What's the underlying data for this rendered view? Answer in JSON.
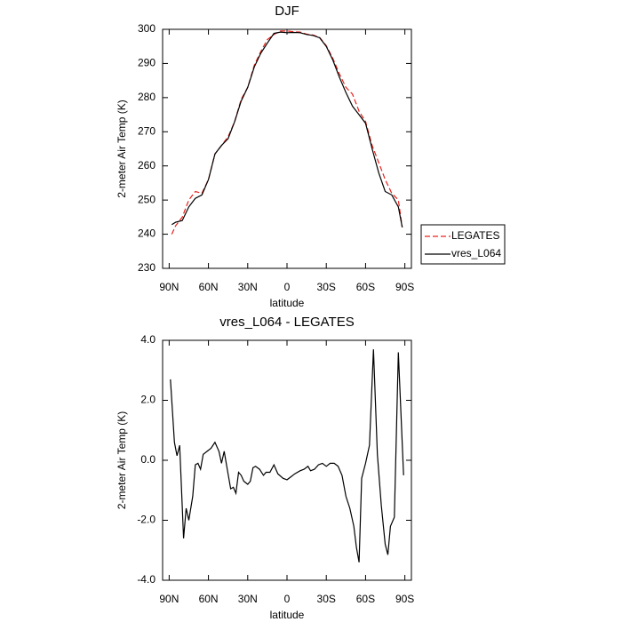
{
  "chart_data": [
    {
      "type": "line",
      "title": "DJF",
      "xlabel": "latitude",
      "ylabel": "2-meter Air Temp (K)",
      "xlim": [
        95,
        -95
      ],
      "xticks": [
        {
          "value": 90,
          "label": "90N"
        },
        {
          "value": 60,
          "label": "60N"
        },
        {
          "value": 30,
          "label": "30N"
        },
        0,
        {
          "value": -30,
          "label": "30S"
        },
        {
          "value": -60,
          "label": "60S"
        },
        {
          "value": -90,
          "label": "90S"
        }
      ],
      "ylim": [
        230,
        300
      ],
      "yticks": [
        230,
        240,
        250,
        260,
        270,
        280,
        290,
        300
      ],
      "legend": "right",
      "x": [
        88,
        85,
        80,
        75,
        70,
        65,
        60,
        55,
        50,
        45,
        40,
        35,
        30,
        25,
        20,
        15,
        10,
        5,
        0,
        -5,
        -10,
        -15,
        -20,
        -25,
        -30,
        -35,
        -40,
        -45,
        -50,
        -55,
        -60,
        -65,
        -70,
        -75,
        -80,
        -85,
        -88
      ],
      "series": [
        {
          "name": "LEGATES",
          "color": "#e8211b",
          "dash": true,
          "values": [
            240,
            242.5,
            245,
            250,
            252.5,
            252,
            256,
            263.5,
            266,
            268.5,
            273,
            279.5,
            283,
            289.5,
            293.5,
            297,
            298.5,
            299.5,
            299.5,
            299.3,
            299.2,
            298.6,
            298.3,
            297.6,
            295.2,
            291.5,
            287,
            283,
            281,
            276,
            273,
            266,
            261,
            256,
            252,
            250,
            242
          ]
        },
        {
          "name": "vres_L064",
          "color": "#000000",
          "dash": false,
          "values": [
            242.8,
            243.5,
            244,
            248,
            250.5,
            251.5,
            256,
            263.5,
            266,
            268,
            273,
            279,
            283,
            289,
            293,
            296,
            298.8,
            299.2,
            299,
            299.1,
            299,
            298.5,
            298.2,
            297.5,
            295,
            291,
            286,
            281.5,
            277.5,
            275,
            272.5,
            265,
            258,
            252.5,
            251.5,
            248,
            242
          ]
        }
      ]
    },
    {
      "type": "line",
      "title": "vres_L064 - LEGATES",
      "xlabel": "latitude",
      "ylabel": "2-meter Air Temp (K)",
      "xlim": [
        95,
        -95
      ],
      "xticks": [
        {
          "value": 90,
          "label": "90N"
        },
        {
          "value": 60,
          "label": "60N"
        },
        {
          "value": 30,
          "label": "30N"
        },
        0,
        {
          "value": -30,
          "label": "30S"
        },
        {
          "value": -60,
          "label": "60S"
        },
        {
          "value": -90,
          "label": "90S"
        }
      ],
      "ylim": [
        -4,
        4
      ],
      "yticks": [
        {
          "value": -4,
          "label": "-4.0"
        },
        {
          "value": -2,
          "label": "-2.0"
        },
        {
          "value": 0,
          "label": "0.0"
        },
        {
          "value": 2,
          "label": "2.0"
        },
        {
          "value": 4,
          "label": "4.0"
        }
      ],
      "x": [
        89,
        86,
        84,
        82,
        79,
        77,
        75,
        72,
        70,
        68,
        66,
        64,
        61,
        58,
        55,
        52,
        50,
        48,
        46,
        43,
        41,
        39,
        37,
        35,
        33,
        30,
        28,
        26,
        24,
        21,
        18,
        16,
        13,
        10,
        7,
        3,
        0,
        -3,
        -6,
        -10,
        -13,
        -16,
        -18,
        -21,
        -24,
        -27,
        -30,
        -33,
        -36,
        -39,
        -42,
        -45,
        -48,
        -51,
        -53,
        -55,
        -57,
        -60,
        -63,
        -66,
        -69,
        -72,
        -75,
        -77,
        -79,
        -82,
        -85,
        -89
      ],
      "series": [
        {
          "color": "#000000",
          "dash": false,
          "values": [
            2.7,
            0.6,
            0.15,
            0.5,
            -2.6,
            -1.6,
            -2.0,
            -1.2,
            -0.15,
            -0.1,
            -0.3,
            0.2,
            0.3,
            0.4,
            0.6,
            0.3,
            -0.1,
            0.3,
            -0.2,
            -0.95,
            -0.9,
            -1.1,
            -0.4,
            -0.5,
            -0.7,
            -0.8,
            -0.7,
            -0.25,
            -0.2,
            -0.3,
            -0.5,
            -0.4,
            -0.4,
            -0.15,
            -0.45,
            -0.6,
            -0.65,
            -0.55,
            -0.45,
            -0.35,
            -0.3,
            -0.2,
            -0.35,
            -0.3,
            -0.15,
            -0.1,
            -0.2,
            -0.1,
            -0.1,
            -0.2,
            -0.5,
            -1.2,
            -1.6,
            -2.2,
            -2.9,
            -3.4,
            -0.6,
            -0.1,
            0.5,
            3.7,
            0.2,
            -1.5,
            -2.8,
            -3.15,
            -2.2,
            -1.9,
            3.6,
            -0.5
          ]
        }
      ]
    }
  ]
}
